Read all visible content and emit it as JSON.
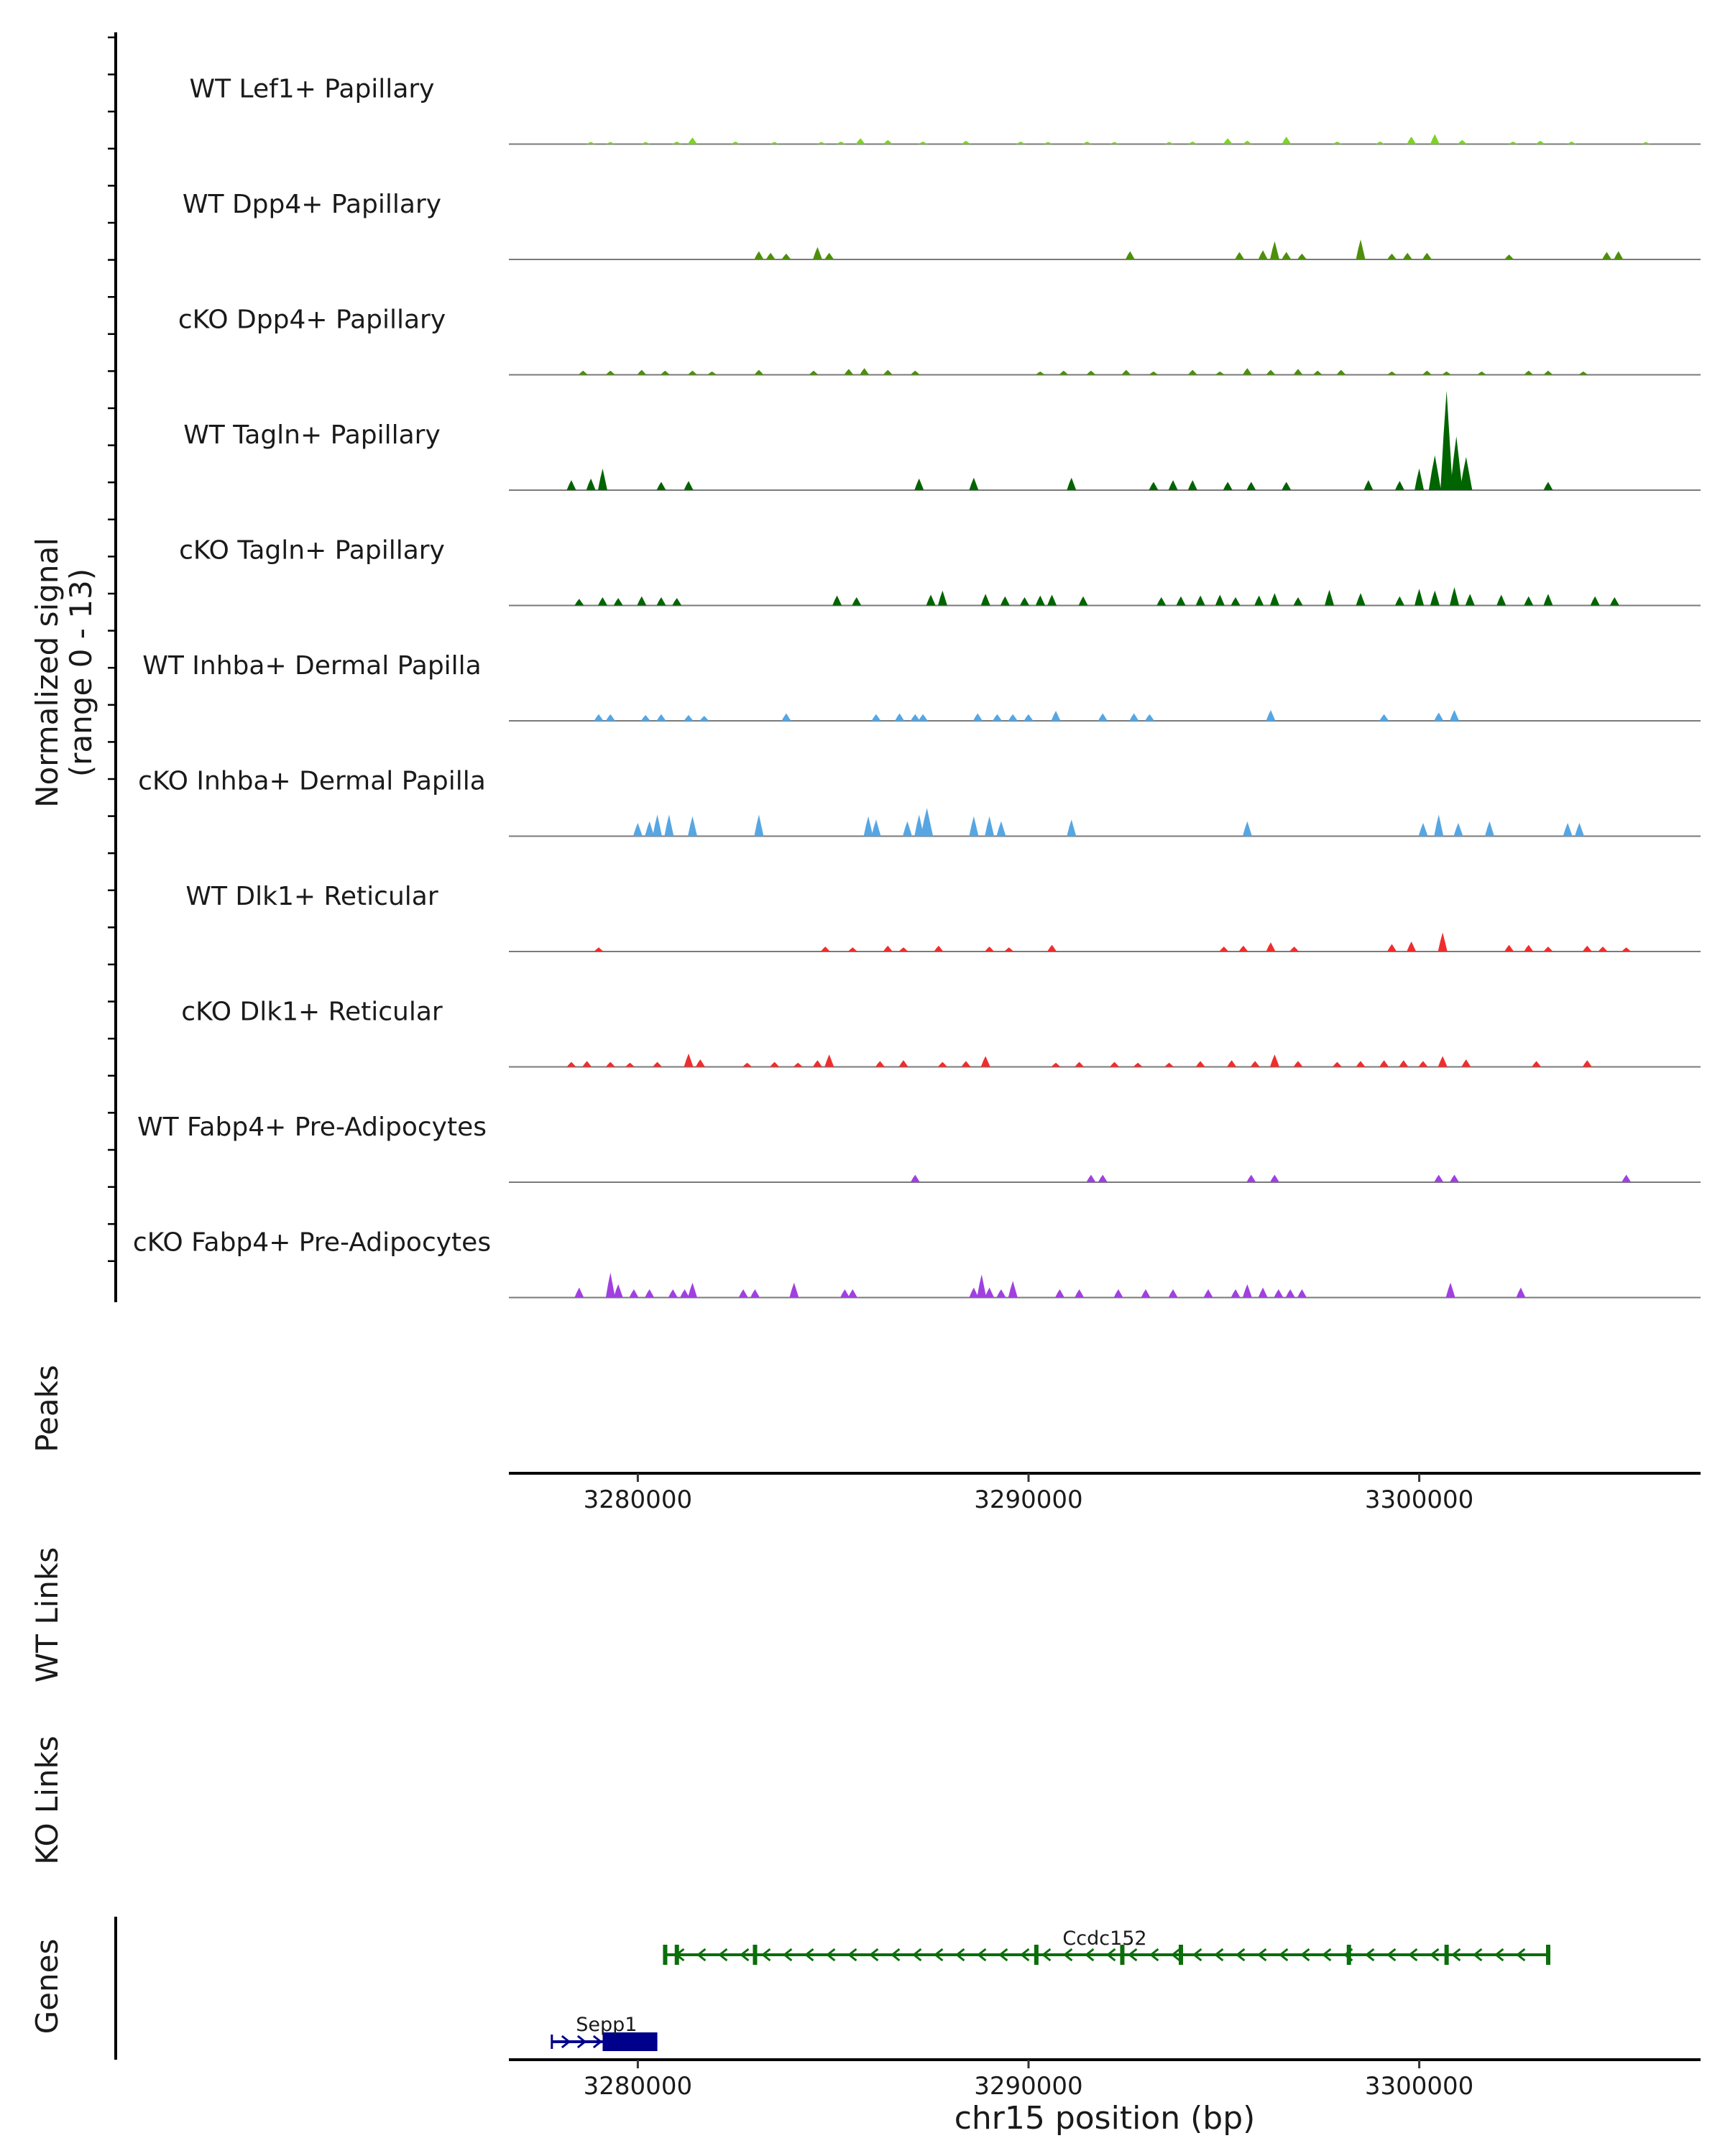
{
  "chart_data": {
    "type": "coverage_track",
    "chromosome": "chr15",
    "xlim": [
      3276700,
      3307200
    ],
    "x_ticks": [
      3280000,
      3290000,
      3300000
    ],
    "x_tick_labels": [
      "3280000",
      "3290000",
      "3300000"
    ],
    "xlabel": "chr15 position (bp)",
    "ylabel_line1": "Normalized signal",
    "ylabel_line2": "(range 0 - 13)",
    "y_range": [
      0,
      13
    ],
    "tracks": [
      {
        "name": "WT Lef1+ Papillary",
        "color": "#7fd12a",
        "peaks": [
          [
            3278800,
            0.2
          ],
          [
            3279300,
            0.2
          ],
          [
            3280200,
            0.2
          ],
          [
            3281000,
            0.3
          ],
          [
            3281400,
            0.8
          ],
          [
            3282500,
            0.3
          ],
          [
            3283500,
            0.2
          ],
          [
            3284700,
            0.2
          ],
          [
            3285200,
            0.3
          ],
          [
            3285700,
            0.7
          ],
          [
            3286400,
            0.5
          ],
          [
            3287300,
            0.3
          ],
          [
            3288400,
            0.4
          ],
          [
            3289800,
            0.3
          ],
          [
            3290500,
            0.2
          ],
          [
            3291500,
            0.3
          ],
          [
            3292200,
            0.2
          ],
          [
            3293600,
            0.2
          ],
          [
            3294200,
            0.3
          ],
          [
            3295100,
            0.7
          ],
          [
            3295600,
            0.4
          ],
          [
            3296600,
            0.9
          ],
          [
            3297900,
            0.3
          ],
          [
            3299000,
            0.3
          ],
          [
            3299800,
            0.9
          ],
          [
            3300400,
            1.2
          ],
          [
            3301100,
            0.5
          ],
          [
            3302400,
            0.3
          ],
          [
            3303100,
            0.4
          ],
          [
            3303900,
            0.3
          ],
          [
            3305800,
            0.2
          ]
        ]
      },
      {
        "name": "WT Dpp4+ Papillary",
        "color": "#4d8f0b",
        "peaks": [
          [
            3283100,
            1.0
          ],
          [
            3283400,
            0.8
          ],
          [
            3283800,
            0.7
          ],
          [
            3284600,
            1.5
          ],
          [
            3284900,
            0.8
          ],
          [
            3292600,
            1.0
          ],
          [
            3295400,
            0.9
          ],
          [
            3296000,
            1.1
          ],
          [
            3296300,
            2.2
          ],
          [
            3296600,
            0.9
          ],
          [
            3297000,
            0.7
          ],
          [
            3298500,
            2.4
          ],
          [
            3299300,
            0.7
          ],
          [
            3299700,
            0.8
          ],
          [
            3300200,
            0.8
          ],
          [
            3302300,
            0.6
          ],
          [
            3304800,
            0.9
          ],
          [
            3305100,
            1.0
          ]
        ]
      },
      {
        "name": "cKO Dpp4+ Papillary",
        "color": "#4d8f0b",
        "peaks": [
          [
            3278600,
            0.5
          ],
          [
            3279300,
            0.5
          ],
          [
            3280100,
            0.6
          ],
          [
            3280700,
            0.5
          ],
          [
            3281400,
            0.5
          ],
          [
            3281900,
            0.4
          ],
          [
            3283100,
            0.6
          ],
          [
            3284500,
            0.5
          ],
          [
            3285400,
            0.7
          ],
          [
            3285800,
            0.8
          ],
          [
            3286400,
            0.6
          ],
          [
            3287100,
            0.5
          ],
          [
            3290300,
            0.4
          ],
          [
            3290900,
            0.5
          ],
          [
            3291600,
            0.5
          ],
          [
            3292500,
            0.6
          ],
          [
            3293200,
            0.4
          ],
          [
            3294200,
            0.6
          ],
          [
            3294900,
            0.4
          ],
          [
            3295600,
            0.8
          ],
          [
            3296200,
            0.6
          ],
          [
            3296900,
            0.7
          ],
          [
            3297400,
            0.5
          ],
          [
            3298000,
            0.6
          ],
          [
            3299300,
            0.4
          ],
          [
            3300200,
            0.5
          ],
          [
            3300700,
            0.4
          ],
          [
            3301600,
            0.4
          ],
          [
            3302800,
            0.5
          ],
          [
            3303300,
            0.5
          ],
          [
            3304200,
            0.4
          ]
        ]
      },
      {
        "name": "WT Tagln+ Papillary",
        "color": "#006400",
        "peaks": [
          [
            3278300,
            1.2
          ],
          [
            3278800,
            1.4
          ],
          [
            3279100,
            2.6
          ],
          [
            3280600,
            1.0
          ],
          [
            3281300,
            1.1
          ],
          [
            3287200,
            1.4
          ],
          [
            3288600,
            1.5
          ],
          [
            3291100,
            1.5
          ],
          [
            3293200,
            1.0
          ],
          [
            3293700,
            1.2
          ],
          [
            3294200,
            1.2
          ],
          [
            3295100,
            1.0
          ],
          [
            3295700,
            1.0
          ],
          [
            3296600,
            1.0
          ],
          [
            3298700,
            1.2
          ],
          [
            3299500,
            1.1
          ],
          [
            3300000,
            2.6
          ],
          [
            3300400,
            4.2
          ],
          [
            3300700,
            12.0
          ],
          [
            3300950,
            6.5
          ],
          [
            3301200,
            4.0
          ],
          [
            3303300,
            1.0
          ]
        ]
      },
      {
        "name": "cKO Tagln+ Papillary",
        "color": "#006400",
        "peaks": [
          [
            3278500,
            0.8
          ],
          [
            3279100,
            1.0
          ],
          [
            3279500,
            0.9
          ],
          [
            3280100,
            1.1
          ],
          [
            3280600,
            1.0
          ],
          [
            3281000,
            0.9
          ],
          [
            3285100,
            1.2
          ],
          [
            3285600,
            1.0
          ],
          [
            3287500,
            1.3
          ],
          [
            3287800,
            1.8
          ],
          [
            3288900,
            1.4
          ],
          [
            3289400,
            1.1
          ],
          [
            3289900,
            1.0
          ],
          [
            3290300,
            1.2
          ],
          [
            3290600,
            1.3
          ],
          [
            3291400,
            1.1
          ],
          [
            3293400,
            1.0
          ],
          [
            3293900,
            1.1
          ],
          [
            3294400,
            1.2
          ],
          [
            3294900,
            1.3
          ],
          [
            3295300,
            1.0
          ],
          [
            3295900,
            1.2
          ],
          [
            3296300,
            1.5
          ],
          [
            3296900,
            1.0
          ],
          [
            3297700,
            1.9
          ],
          [
            3298500,
            1.5
          ],
          [
            3299500,
            1.1
          ],
          [
            3300000,
            2.0
          ],
          [
            3300400,
            1.8
          ],
          [
            3300900,
            2.2
          ],
          [
            3301300,
            1.4
          ],
          [
            3302100,
            1.3
          ],
          [
            3302800,
            1.1
          ],
          [
            3303300,
            1.4
          ],
          [
            3304500,
            1.1
          ],
          [
            3305000,
            1.0
          ]
        ]
      },
      {
        "name": "WT Inhba+ Dermal Papilla",
        "color": "#56a6e3",
        "peaks": [
          [
            3279000,
            0.8
          ],
          [
            3279300,
            0.8
          ],
          [
            3280200,
            0.7
          ],
          [
            3280600,
            0.8
          ],
          [
            3281300,
            0.7
          ],
          [
            3281700,
            0.6
          ],
          [
            3283800,
            0.9
          ],
          [
            3286100,
            0.8
          ],
          [
            3286700,
            0.9
          ],
          [
            3287100,
            0.8
          ],
          [
            3287300,
            0.8
          ],
          [
            3288700,
            0.9
          ],
          [
            3289200,
            0.8
          ],
          [
            3289600,
            0.8
          ],
          [
            3290000,
            0.8
          ],
          [
            3290700,
            1.2
          ],
          [
            3291900,
            0.9
          ],
          [
            3292700,
            0.9
          ],
          [
            3293100,
            0.8
          ],
          [
            3296200,
            1.3
          ],
          [
            3299100,
            0.8
          ],
          [
            3300500,
            1.0
          ],
          [
            3300900,
            1.3
          ]
        ]
      },
      {
        "name": "cKO Inhba+ Dermal Papilla",
        "color": "#56a6e3",
        "peaks": [
          [
            3280000,
            1.6
          ],
          [
            3280300,
            1.8
          ],
          [
            3280500,
            2.6
          ],
          [
            3280800,
            2.6
          ],
          [
            3281400,
            2.4
          ],
          [
            3283100,
            2.6
          ],
          [
            3285900,
            2.4
          ],
          [
            3286100,
            2.0
          ],
          [
            3286900,
            1.8
          ],
          [
            3287200,
            2.6
          ],
          [
            3287400,
            3.4
          ],
          [
            3288600,
            2.4
          ],
          [
            3289000,
            2.4
          ],
          [
            3289300,
            1.8
          ],
          [
            3291100,
            2.0
          ],
          [
            3295600,
            1.8
          ],
          [
            3300100,
            1.6
          ],
          [
            3300500,
            2.6
          ],
          [
            3301000,
            1.6
          ],
          [
            3301800,
            1.8
          ],
          [
            3303800,
            1.6
          ],
          [
            3304100,
            1.6
          ]
        ]
      },
      {
        "name": "WT Dlk1+ Reticular",
        "color": "#ee2e2e",
        "peaks": [
          [
            3279000,
            0.5
          ],
          [
            3284800,
            0.6
          ],
          [
            3285500,
            0.5
          ],
          [
            3286400,
            0.7
          ],
          [
            3286800,
            0.5
          ],
          [
            3287700,
            0.7
          ],
          [
            3289000,
            0.6
          ],
          [
            3289500,
            0.5
          ],
          [
            3290600,
            0.8
          ],
          [
            3295000,
            0.6
          ],
          [
            3295500,
            0.7
          ],
          [
            3296200,
            1.1
          ],
          [
            3296800,
            0.6
          ],
          [
            3299300,
            0.9
          ],
          [
            3299800,
            1.2
          ],
          [
            3300600,
            2.3
          ],
          [
            3302300,
            0.8
          ],
          [
            3302800,
            0.8
          ],
          [
            3303300,
            0.6
          ],
          [
            3304300,
            0.7
          ],
          [
            3304700,
            0.6
          ],
          [
            3305300,
            0.5
          ]
        ]
      },
      {
        "name": "cKO Dlk1+ Reticular",
        "color": "#ee2e2e",
        "peaks": [
          [
            3278300,
            0.6
          ],
          [
            3278700,
            0.7
          ],
          [
            3279300,
            0.6
          ],
          [
            3279800,
            0.5
          ],
          [
            3280500,
            0.6
          ],
          [
            3281300,
            1.6
          ],
          [
            3281600,
            0.9
          ],
          [
            3282800,
            0.5
          ],
          [
            3283500,
            0.6
          ],
          [
            3284100,
            0.5
          ],
          [
            3284600,
            0.8
          ],
          [
            3284900,
            1.5
          ],
          [
            3286200,
            0.7
          ],
          [
            3286800,
            0.8
          ],
          [
            3287800,
            0.6
          ],
          [
            3288400,
            0.7
          ],
          [
            3288900,
            1.3
          ],
          [
            3290700,
            0.5
          ],
          [
            3291300,
            0.6
          ],
          [
            3292200,
            0.6
          ],
          [
            3292800,
            0.5
          ],
          [
            3293600,
            0.5
          ],
          [
            3294400,
            0.7
          ],
          [
            3295200,
            0.8
          ],
          [
            3295800,
            0.7
          ],
          [
            3296300,
            1.5
          ],
          [
            3296900,
            0.7
          ],
          [
            3297900,
            0.6
          ],
          [
            3298500,
            0.7
          ],
          [
            3299100,
            0.8
          ],
          [
            3299600,
            0.8
          ],
          [
            3300100,
            0.7
          ],
          [
            3300600,
            1.3
          ],
          [
            3301200,
            0.9
          ],
          [
            3303000,
            0.7
          ],
          [
            3304300,
            0.8
          ]
        ]
      },
      {
        "name": "WT Fabp4+ Pre-Adipocytes",
        "color": "#a040e0",
        "peaks": [
          [
            3287100,
            0.9
          ],
          [
            3291600,
            0.9
          ],
          [
            3291900,
            0.9
          ],
          [
            3295700,
            0.9
          ],
          [
            3296300,
            0.9
          ],
          [
            3300500,
            0.9
          ],
          [
            3300900,
            0.9
          ],
          [
            3305300,
            0.9
          ]
        ]
      },
      {
        "name": "cKO Fabp4+ Pre-Adipocytes",
        "color": "#a040e0",
        "peaks": [
          [
            3278500,
            1.2
          ],
          [
            3279300,
            3.0
          ],
          [
            3279500,
            1.6
          ],
          [
            3279900,
            1.0
          ],
          [
            3280300,
            1.0
          ],
          [
            3280900,
            1.0
          ],
          [
            3281200,
            1.0
          ],
          [
            3281400,
            1.8
          ],
          [
            3282700,
            1.0
          ],
          [
            3283000,
            1.0
          ],
          [
            3284000,
            1.8
          ],
          [
            3285300,
            1.0
          ],
          [
            3285500,
            1.0
          ],
          [
            3288600,
            1.2
          ],
          [
            3288800,
            2.8
          ],
          [
            3289000,
            1.2
          ],
          [
            3289300,
            1.0
          ],
          [
            3289600,
            2.0
          ],
          [
            3290800,
            1.0
          ],
          [
            3291300,
            1.0
          ],
          [
            3292300,
            1.0
          ],
          [
            3293000,
            1.0
          ],
          [
            3293700,
            1.0
          ],
          [
            3294600,
            1.0
          ],
          [
            3295300,
            1.0
          ],
          [
            3295600,
            1.6
          ],
          [
            3296000,
            1.2
          ],
          [
            3296400,
            1.0
          ],
          [
            3296700,
            1.0
          ],
          [
            3297000,
            1.0
          ],
          [
            3300800,
            1.8
          ],
          [
            3302600,
            1.2
          ]
        ]
      }
    ],
    "peaks_label": "Peaks",
    "wt_links_label": "WT Links",
    "ko_links_label": "KO Links",
    "genes_label": "Genes",
    "genes": [
      {
        "name": "Ccdc152",
        "start": 3280700,
        "end": 3303300,
        "strand": "-",
        "color": "#0a6e0a",
        "exons": [
          3280700,
          3281000,
          3283000,
          3290200,
          3292400,
          3293900,
          3298200,
          3300700,
          3303300
        ]
      },
      {
        "name": "Sepp1",
        "start": 3277800,
        "end": 3280500,
        "strand": "+",
        "color": "#00008b",
        "exons": [
          3279100
        ]
      }
    ]
  }
}
